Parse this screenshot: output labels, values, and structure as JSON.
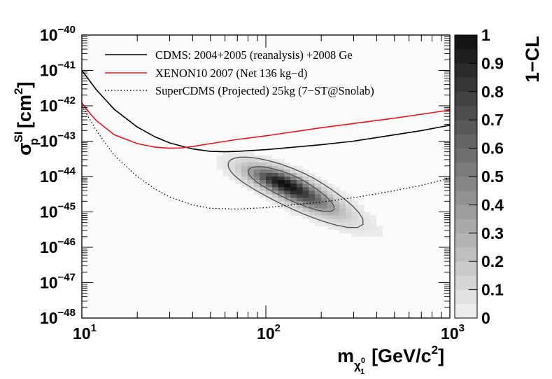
{
  "chart_data": {
    "type": "heatmap",
    "x_axis": {
      "title_main": "m",
      "title_sub": "χ",
      "title_sub_sup": "0",
      "title_sub_sub": "1",
      "title_unit": "[GeV/c",
      "title_unit_sup": "2",
      "title_unit_end": "]",
      "scale": "log",
      "range": [
        10,
        1000
      ],
      "ticks": [
        {
          "value": 10,
          "base": "10",
          "exp": "1"
        },
        {
          "value": 100,
          "base": "10",
          "exp": "2"
        },
        {
          "value": 1000,
          "base": "10",
          "exp": "3"
        }
      ]
    },
    "y_axis": {
      "title_main": "σ",
      "title_sup": "SI",
      "title_sub": "p",
      "title_unit": "[cm",
      "title_unit_sup": "2",
      "title_unit_end": "]",
      "scale": "log",
      "range": [
        1e-48,
        1e-40
      ],
      "ticks": [
        {
          "value": -40,
          "base": "10",
          "exp": "−40"
        },
        {
          "value": -41,
          "base": "10",
          "exp": "−41"
        },
        {
          "value": -42,
          "base": "10",
          "exp": "−42"
        },
        {
          "value": -43,
          "base": "10",
          "exp": "−43"
        },
        {
          "value": -44,
          "base": "10",
          "exp": "−44"
        },
        {
          "value": -45,
          "base": "10",
          "exp": "−45"
        },
        {
          "value": -46,
          "base": "10",
          "exp": "−46"
        },
        {
          "value": -47,
          "base": "10",
          "exp": "−47"
        },
        {
          "value": -48,
          "base": "10",
          "exp": "−48"
        }
      ]
    },
    "colorbar": {
      "title": "1−CL",
      "range": [
        0,
        1
      ],
      "ticks": [
        "0",
        "0.1",
        "0.2",
        "0.3",
        "0.4",
        "0.5",
        "0.6",
        "0.7",
        "0.8",
        "0.9",
        "1"
      ]
    },
    "legend": {
      "placement": "top",
      "entries": [
        {
          "label": "CDMS: 2004+2005 (reanalysis) +2008 Ge",
          "color": "#000000",
          "style": "solid"
        },
        {
          "label": "XENON10 2007 (Net 136 kg−d)",
          "color": "#e8141c",
          "style": "solid"
        },
        {
          "label": "SuperCDMS (Projected) 25kg (7−ST@Snolab)",
          "color": "#000000",
          "style": "dotted"
        }
      ]
    },
    "series": [
      {
        "name": "CDMS: 2004+2005 (reanalysis) +2008 Ge",
        "color": "#000000",
        "style": "solid",
        "points": [
          [
            10,
            -41.0
          ],
          [
            12,
            -41.55
          ],
          [
            15,
            -42.1
          ],
          [
            20,
            -42.6
          ],
          [
            25,
            -42.88
          ],
          [
            30,
            -43.05
          ],
          [
            40,
            -43.22
          ],
          [
            50,
            -43.29
          ],
          [
            60,
            -43.3
          ],
          [
            70,
            -43.29
          ],
          [
            100,
            -43.24
          ],
          [
            200,
            -43.1
          ],
          [
            300,
            -43.0
          ],
          [
            500,
            -42.82
          ],
          [
            700,
            -42.7
          ],
          [
            1000,
            -42.55
          ]
        ]
      },
      {
        "name": "XENON10 2007 (Net 136 kg−d)",
        "color": "#e8141c",
        "style": "solid",
        "points": [
          [
            10,
            -41.92
          ],
          [
            11,
            -42.2
          ],
          [
            12,
            -42.42
          ],
          [
            15,
            -42.82
          ],
          [
            20,
            -43.07
          ],
          [
            25,
            -43.17
          ],
          [
            30,
            -43.2
          ],
          [
            35,
            -43.19
          ],
          [
            40,
            -43.15
          ],
          [
            50,
            -43.07
          ],
          [
            70,
            -42.95
          ],
          [
            100,
            -42.85
          ],
          [
            200,
            -42.62
          ],
          [
            300,
            -42.5
          ],
          [
            500,
            -42.35
          ],
          [
            1000,
            -42.12
          ]
        ]
      },
      {
        "name": "SuperCDMS (Projected) 25kg (7−ST@Snolab)",
        "color": "#000000",
        "style": "dotted",
        "points": [
          [
            10,
            -42.0
          ],
          [
            12,
            -42.7
          ],
          [
            15,
            -43.4
          ],
          [
            20,
            -44.0
          ],
          [
            25,
            -44.35
          ],
          [
            30,
            -44.58
          ],
          [
            40,
            -44.8
          ],
          [
            50,
            -44.9
          ],
          [
            70,
            -44.92
          ],
          [
            100,
            -44.88
          ],
          [
            200,
            -44.72
          ],
          [
            300,
            -44.6
          ],
          [
            500,
            -44.4
          ],
          [
            700,
            -44.25
          ],
          [
            1000,
            -44.05
          ]
        ]
      }
    ],
    "heatmap": {
      "description": "posterior density of 1−CL, peak near m=125 GeV, σ=10^-44.2 cm^2, elongated along anti-diagonal",
      "peak": {
        "x": 125,
        "y": -44.2,
        "value": 1.0
      },
      "contours": [
        0.68,
        0.95
      ]
    }
  }
}
